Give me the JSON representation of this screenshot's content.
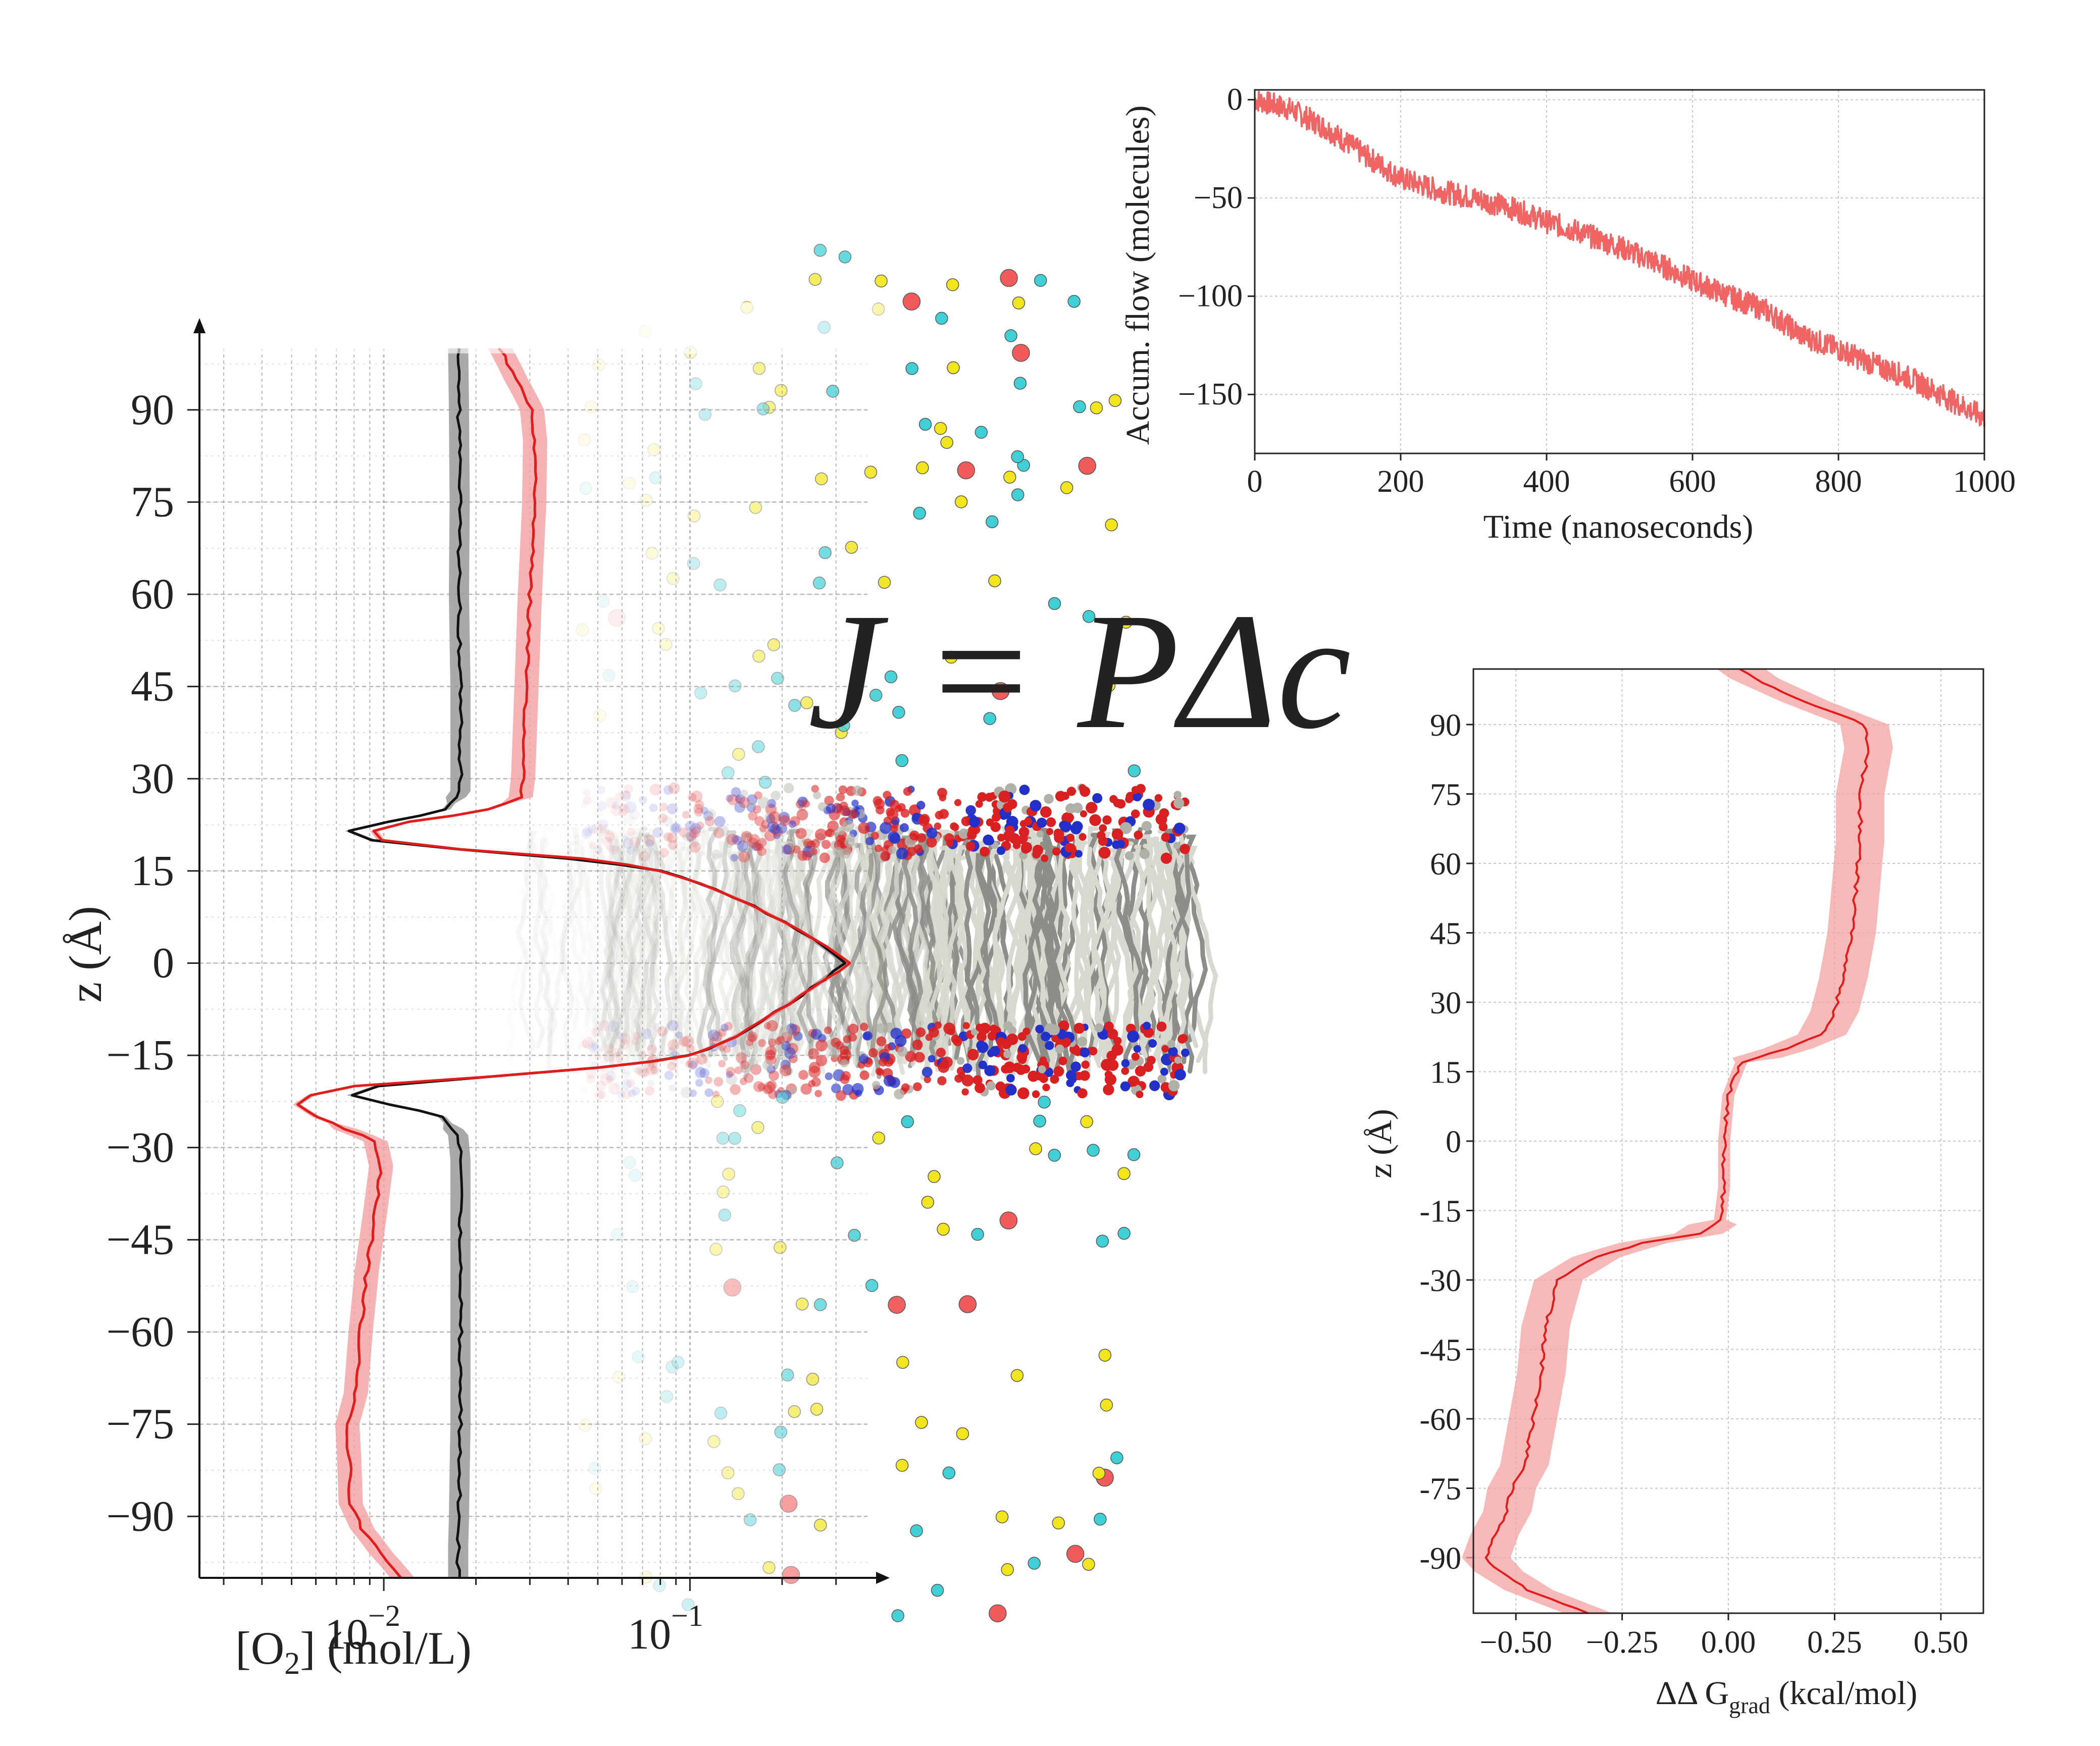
{
  "equation": "J = PΔc",
  "colors": {
    "red": "#e21b1b",
    "red_band": "#f4a0a0",
    "black": "#111111",
    "gray_band": "#9a9a9a",
    "flow": "#f06464",
    "cyan_atom": "#3fd0d6",
    "yellow_atom": "#f2e51c",
    "red_atom": "#f35b5b",
    "lipid": "#d8d8d0"
  },
  "chart_data": [
    {
      "id": "o2-profile",
      "type": "line",
      "xlabel": "[O2] (mol/L)",
      "ylabel": "z (Å)",
      "xscale": "log",
      "xlim": [
        0.0025,
        0.38
      ],
      "ylim": [
        -100,
        100
      ],
      "xticks": [
        "10^{-2}",
        "10^{-1}"
      ],
      "yticks": [
        90,
        75,
        60,
        45,
        30,
        15,
        0,
        -15,
        -30,
        -45,
        -60,
        -75,
        -90
      ],
      "grid": true,
      "series": [
        {
          "color": "black",
          "points": [
            [
              -100,
              0.0175
            ],
            [
              -95,
              0.0175
            ],
            [
              -90,
              0.0176
            ],
            [
              -75,
              0.0178
            ],
            [
              -60,
              0.0178
            ],
            [
              -45,
              0.0178
            ],
            [
              -32,
              0.0178
            ],
            [
              -28,
              0.0175
            ],
            [
              -25,
              0.0155
            ],
            [
              -23,
              0.0105
            ],
            [
              -21.5,
              0.0078
            ],
            [
              -20,
              0.0095
            ],
            [
              -18.5,
              0.022
            ],
            [
              -17,
              0.05
            ],
            [
              -15,
              0.1
            ],
            [
              -12,
              0.14
            ],
            [
              -8,
              0.19
            ],
            [
              -4,
              0.25
            ],
            [
              0,
              0.32
            ],
            [
              4,
              0.25
            ],
            [
              8,
              0.18
            ],
            [
              12,
              0.12
            ],
            [
              15,
              0.08
            ],
            [
              17,
              0.04
            ],
            [
              18.5,
              0.018
            ],
            [
              20,
              0.0092
            ],
            [
              21.5,
              0.0077
            ],
            [
              23,
              0.0105
            ],
            [
              25,
              0.016
            ],
            [
              28,
              0.0178
            ],
            [
              32,
              0.0178
            ],
            [
              45,
              0.0178
            ],
            [
              60,
              0.0176
            ],
            [
              75,
              0.0177
            ],
            [
              90,
              0.0176
            ],
            [
              100,
              0.0175
            ]
          ]
        },
        {
          "color": "red",
          "points": [
            [
              -100,
              0.0115
            ],
            [
              -96,
              0.0098
            ],
            [
              -92,
              0.0085
            ],
            [
              -88,
              0.0078
            ],
            [
              -80,
              0.0077
            ],
            [
              -75,
              0.0076
            ],
            [
              -70,
              0.0081
            ],
            [
              -60,
              0.0084
            ],
            [
              -50,
              0.0088
            ],
            [
              -45,
              0.0091
            ],
            [
              -40,
              0.0094
            ],
            [
              -33,
              0.0098
            ],
            [
              -29,
              0.0094
            ],
            [
              -27,
              0.0075
            ],
            [
              -25,
              0.006
            ],
            [
              -23,
              0.0052
            ],
            [
              -21.5,
              0.0058
            ],
            [
              -20,
              0.008
            ],
            [
              -18.5,
              0.022
            ],
            [
              -17,
              0.05
            ],
            [
              -15,
              0.1
            ],
            [
              -12,
              0.14
            ],
            [
              -8,
              0.19
            ],
            [
              -4,
              0.25
            ],
            [
              0,
              0.33
            ],
            [
              4,
              0.25
            ],
            [
              8,
              0.18
            ],
            [
              12,
              0.12
            ],
            [
              15,
              0.08
            ],
            [
              17,
              0.045
            ],
            [
              18.5,
              0.018
            ],
            [
              20,
              0.0098
            ],
            [
              21.5,
              0.0093
            ],
            [
              23,
              0.012
            ],
            [
              25,
              0.022
            ],
            [
              27,
              0.028
            ],
            [
              30,
              0.0285
            ],
            [
              40,
              0.029
            ],
            [
              50,
              0.0295
            ],
            [
              60,
              0.03
            ],
            [
              75,
              0.031
            ],
            [
              85,
              0.0312
            ],
            [
              90,
              0.0305
            ],
            [
              95,
              0.027
            ],
            [
              100,
              0.024
            ]
          ]
        }
      ]
    },
    {
      "id": "accum-flow",
      "type": "line",
      "xlabel": "Time (nanoseconds)",
      "ylabel": "Accum. flow (molecules)",
      "xlim": [
        0,
        1000
      ],
      "ylim": [
        -180,
        5
      ],
      "xticks": [
        0,
        200,
        400,
        600,
        800,
        1000
      ],
      "yticks": [
        0,
        -50,
        -100,
        -150
      ],
      "grid": true,
      "series": [
        {
          "color": "flow",
          "points": [
            [
              0,
              0
            ],
            [
              50,
              -5
            ],
            [
              100,
              -15
            ],
            [
              150,
              -28
            ],
            [
              200,
              -40
            ],
            [
              250,
              -46
            ],
            [
              300,
              -50
            ],
            [
              350,
              -55
            ],
            [
              400,
              -62
            ],
            [
              450,
              -68
            ],
            [
              500,
              -75
            ],
            [
              550,
              -83
            ],
            [
              600,
              -92
            ],
            [
              650,
              -100
            ],
            [
              700,
              -107
            ],
            [
              750,
              -120
            ],
            [
              800,
              -127
            ],
            [
              850,
              -135
            ],
            [
              900,
              -142
            ],
            [
              950,
              -152
            ],
            [
              1000,
              -162
            ]
          ]
        }
      ]
    },
    {
      "id": "ddg-profile",
      "type": "line",
      "xlabel": "ΔΔ Ggrad (kcal/mol)",
      "ylabel": "z (Å)",
      "xlim": [
        -0.6,
        0.6
      ],
      "ylim": [
        -102,
        102
      ],
      "xticks": [
        "−0.50",
        "−0.25",
        "0.00",
        "0.25",
        "0.50"
      ],
      "yticks": [
        90,
        75,
        60,
        45,
        30,
        15,
        0,
        -15,
        -30,
        -45,
        -60,
        -75,
        -90
      ],
      "grid": true,
      "series": [
        {
          "color": "red",
          "points": [
            [
              -102,
              -0.33
            ],
            [
              -97,
              -0.47
            ],
            [
              -93,
              -0.54
            ],
            [
              -90,
              -0.57
            ],
            [
              -85,
              -0.55
            ],
            [
              -80,
              -0.52
            ],
            [
              -75,
              -0.51
            ],
            [
              -70,
              -0.48
            ],
            [
              -60,
              -0.46
            ],
            [
              -50,
              -0.44
            ],
            [
              -40,
              -0.43
            ],
            [
              -30,
              -0.4
            ],
            [
              -25,
              -0.31
            ],
            [
              -22,
              -0.2
            ],
            [
              -20,
              -0.07
            ],
            [
              -17,
              -0.02
            ],
            [
              -10,
              -0.01
            ],
            [
              0,
              -0.01
            ],
            [
              10,
              0.0
            ],
            [
              17,
              0.03
            ],
            [
              20,
              0.14
            ],
            [
              23,
              0.22
            ],
            [
              28,
              0.25
            ],
            [
              35,
              0.27
            ],
            [
              45,
              0.29
            ],
            [
              55,
              0.3
            ],
            [
              65,
              0.31
            ],
            [
              75,
              0.31
            ],
            [
              85,
              0.33
            ],
            [
              90,
              0.32
            ],
            [
              95,
              0.18
            ],
            [
              100,
              0.06
            ],
            [
              102,
              0.03
            ]
          ]
        }
      ]
    }
  ]
}
